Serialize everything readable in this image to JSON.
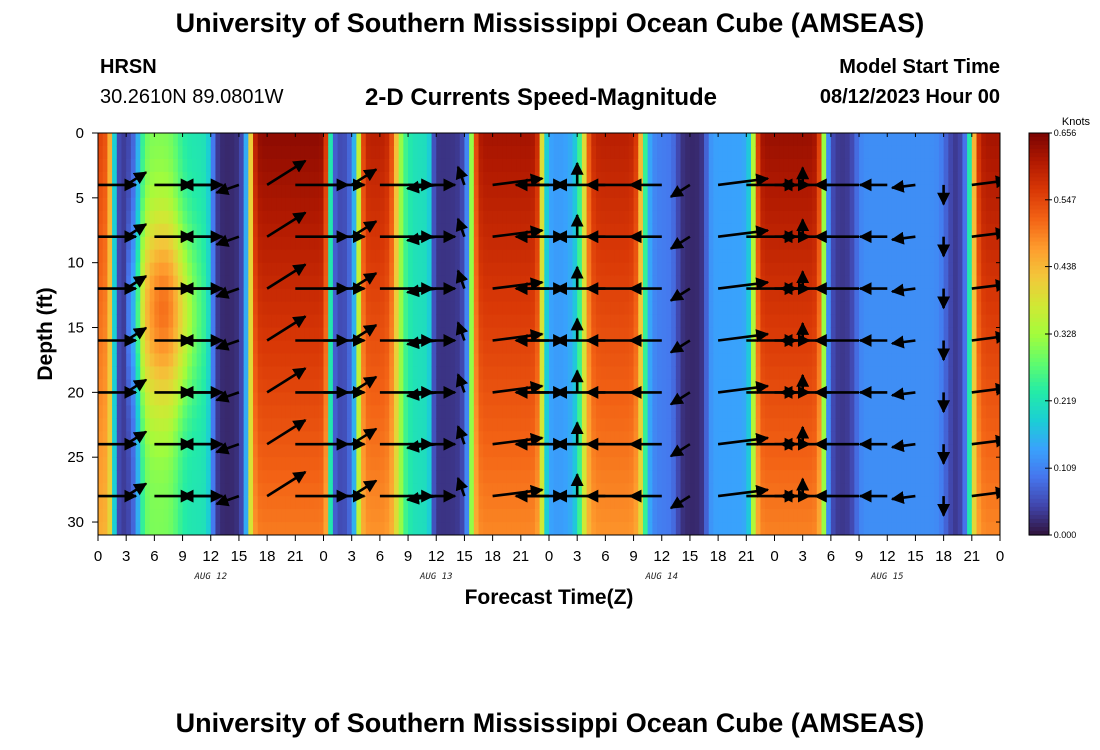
{
  "header": {
    "title": "University of Southern Mississippi Ocean Cube (AMSEAS)",
    "station": "HRSN",
    "coords": "30.2610N  89.0801W",
    "subtitle": "2-D Currents Speed-Magnitude",
    "model_start_label": "Model Start Time",
    "model_start_value": "08/12/2023 Hour 00"
  },
  "footer": {
    "title": "University of Southern Mississippi Ocean Cube (AMSEAS)"
  },
  "chart_data": {
    "type": "heatmap",
    "title": "2-D Currents Speed-Magnitude",
    "xlabel": "Forecast Time(Z)",
    "ylabel": "Depth (ft)",
    "x_ticks": [
      "0",
      "3",
      "6",
      "9",
      "12",
      "15",
      "18",
      "21",
      "0",
      "3",
      "6",
      "9",
      "12",
      "15",
      "18",
      "21",
      "0",
      "3",
      "6",
      "9",
      "12",
      "15",
      "18",
      "21",
      "0",
      "3",
      "6",
      "9",
      "12",
      "15",
      "18",
      "21",
      "0"
    ],
    "x_range_hours": [
      0,
      96
    ],
    "day_labels": [
      {
        "label": "AUG 12",
        "hour": 12
      },
      {
        "label": "AUG 13",
        "hour": 36
      },
      {
        "label": "AUG 14",
        "hour": 60
      },
      {
        "label": "AUG 15",
        "hour": 84
      }
    ],
    "y_ticks": [
      "0",
      "5",
      "10",
      "15",
      "20",
      "25",
      "30"
    ],
    "y_range_ft": [
      0,
      31
    ],
    "colorbar": {
      "unit": "Knots",
      "min": 0.0,
      "max": 0.656,
      "tick_labels": [
        "0.656",
        "0.547",
        "0.438",
        "0.328",
        "0.219",
        "0.109",
        "0.000"
      ],
      "tick_values": [
        0.656,
        0.547,
        0.438,
        0.328,
        0.219,
        0.109,
        0.0
      ],
      "colors": [
        "#30123b",
        "#4145ab",
        "#4675ed",
        "#39a2fc",
        "#1bcfd4",
        "#24eca6",
        "#61fc6c",
        "#a4fc3b",
        "#d1e834",
        "#f3c63a",
        "#fe9b2d",
        "#f36315",
        "#d93806",
        "#b11901",
        "#7a0402"
      ]
    },
    "speed_peaks": [
      {
        "hour": 0.5,
        "speed": 0.55,
        "width": 0.9
      },
      {
        "hour": 3,
        "speed": 0.03,
        "width": 1.2
      },
      {
        "hour": 6.5,
        "speed": 0.3,
        "width": 2.0
      },
      {
        "hour": 10,
        "speed": 0.22,
        "width": 1.5
      },
      {
        "hour": 14,
        "speed": 0.02,
        "width": 1.3
      },
      {
        "hour": 20,
        "speed": 0.64,
        "width": 2.4
      },
      {
        "hour": 26.5,
        "speed": 0.04,
        "width": 1.0
      },
      {
        "hour": 30,
        "speed": 0.6,
        "width": 2.0
      },
      {
        "hour": 33,
        "speed": 0.2,
        "width": 1.2
      },
      {
        "hour": 38,
        "speed": 0.03,
        "width": 1.2
      },
      {
        "hour": 43,
        "speed": 0.62,
        "width": 2.2
      },
      {
        "hour": 50,
        "speed": 0.13,
        "width": 1.4
      },
      {
        "hour": 54.5,
        "speed": 0.6,
        "width": 2.4
      },
      {
        "hour": 60,
        "speed": 0.1,
        "width": 1.4
      },
      {
        "hour": 63,
        "speed": 0.02,
        "width": 1.2
      },
      {
        "hour": 67,
        "speed": 0.14,
        "width": 1.5
      },
      {
        "hour": 74,
        "speed": 0.63,
        "width": 2.2
      },
      {
        "hour": 79,
        "speed": 0.03,
        "width": 1.2
      },
      {
        "hour": 84,
        "speed": 0.12,
        "width": 2.5
      },
      {
        "hour": 89,
        "speed": 0.12,
        "width": 1.5
      },
      {
        "hour": 91.5,
        "speed": 0.02,
        "width": 1.3
      },
      {
        "hour": 95,
        "speed": 0.62,
        "width": 1.8
      }
    ],
    "vector_depths_ft": [
      4,
      8,
      12,
      16,
      20,
      24,
      28
    ],
    "vector_hours": [
      0,
      3,
      6,
      9,
      12,
      15,
      18,
      21,
      24,
      27,
      30,
      33,
      36,
      39,
      42,
      45,
      48,
      51,
      54,
      57,
      60,
      63,
      66,
      69,
      72,
      75,
      78,
      81,
      84,
      87,
      90,
      93,
      96
    ],
    "vector_direction_deg_by_hour": [
      0,
      40,
      0,
      0,
      180,
      205,
      40,
      0,
      0,
      40,
      0,
      0,
      200,
      105,
      20,
      0,
      180,
      90,
      180,
      180,
      180,
      220,
      20,
      0,
      0,
      90,
      180,
      180,
      180,
      200,
      270,
      20,
      0
    ],
    "vector_magnitude_knots_by_hour": [
      0.3,
      0.1,
      0.3,
      0.33,
      0.15,
      0.08,
      0.5,
      0.55,
      0.35,
      0.2,
      0.55,
      0.45,
      0.18,
      0.08,
      0.55,
      0.4,
      0.22,
      0.15,
      0.5,
      0.45,
      0.2,
      0.08,
      0.55,
      0.5,
      0.25,
      0.05,
      0.5,
      0.4,
      0.12,
      0.08,
      0.1,
      0.3,
      0.55
    ]
  }
}
